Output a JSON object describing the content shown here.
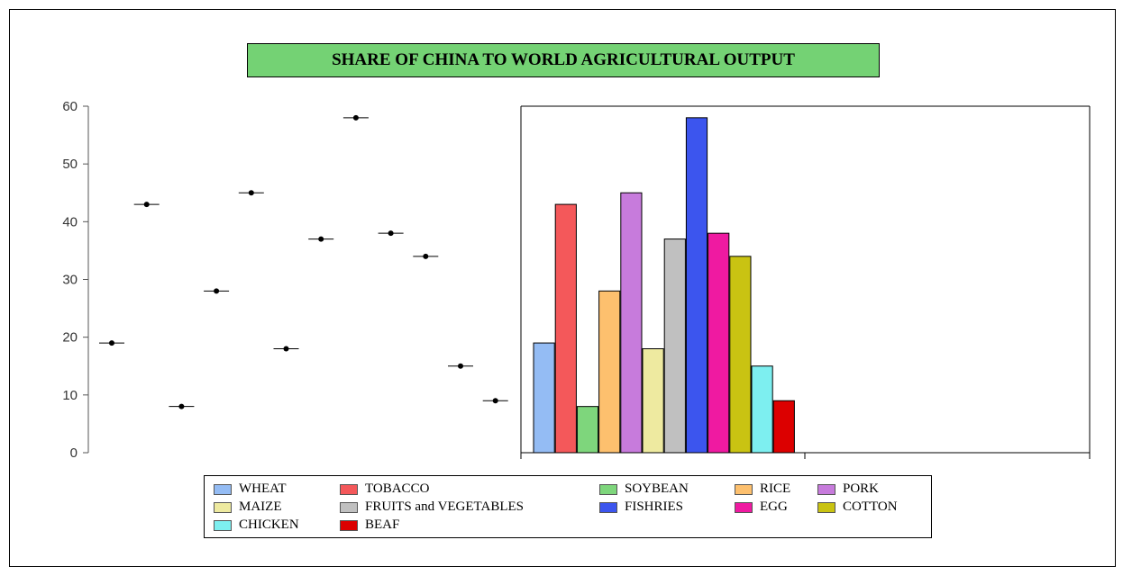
{
  "chart_data": {
    "type": "bar",
    "title": "SHARE OF CHINA TO WORLD AGRICULTURAL OUTPUT",
    "categories": [
      "WHEAT",
      "TOBACCO",
      "SOYBEAN",
      "RICE",
      "PORK",
      "MAIZE",
      "FRUITS and VEGETABLES",
      "FISHRIES",
      "EGG",
      "COTTON",
      "CHICKEN",
      "BEAF"
    ],
    "values": [
      19,
      43,
      8,
      28,
      45,
      18,
      37,
      58,
      38,
      34,
      15,
      9
    ],
    "colors": [
      "#94bcf4",
      "#f4585a",
      "#7ed67c",
      "#fdc06e",
      "#c77bdc",
      "#eeeaa0",
      "#c0c0c0",
      "#3c55ee",
      "#ef1aa1",
      "#c9c312",
      "#7deff0",
      "#dc0000"
    ],
    "ylim": [
      0,
      60
    ],
    "yticks": [
      0,
      10,
      20,
      30,
      40,
      50,
      60
    ],
    "xlabel": "",
    "ylabel": "",
    "grid": false,
    "legend_position": "bottom"
  }
}
